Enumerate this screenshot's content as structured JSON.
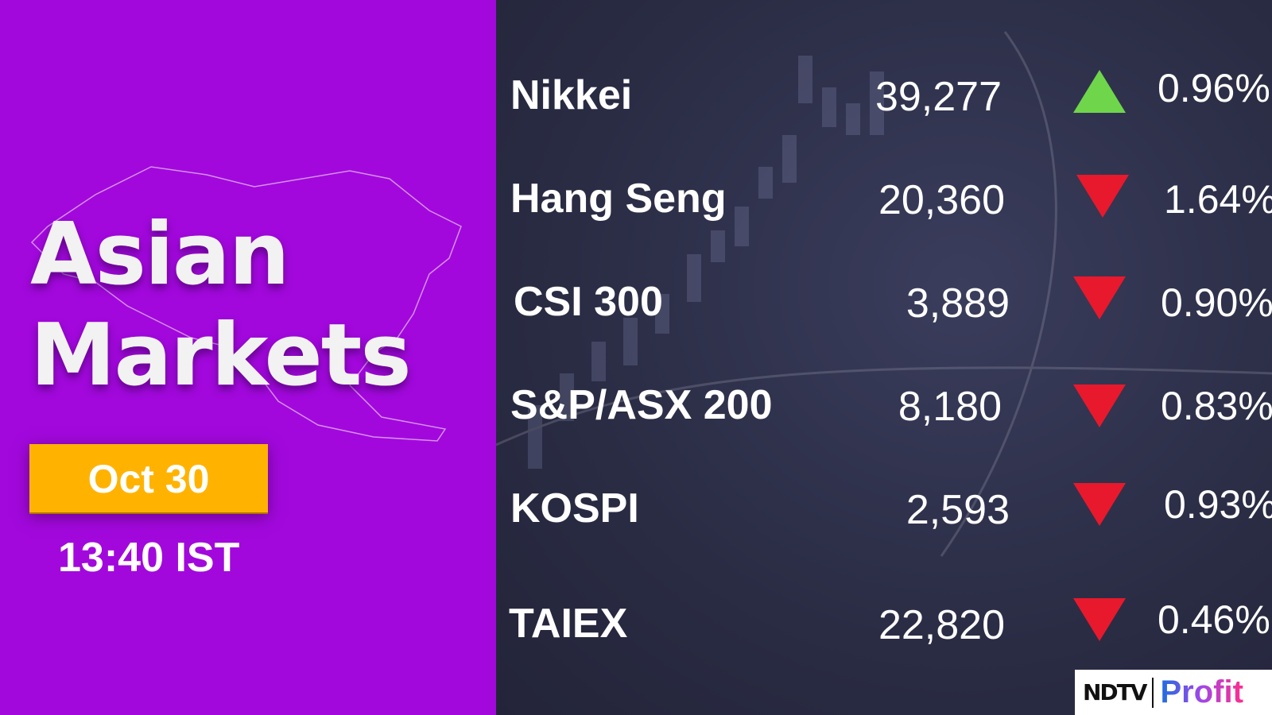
{
  "headline": {
    "line1": "Asian",
    "line2": "Markets"
  },
  "date": "Oct 30",
  "time": "13:40 IST",
  "colors": {
    "left_panel": "#a208dc",
    "date_badge": "#ffb300",
    "up": "#6fd64b",
    "down": "#e8192c"
  },
  "indices": [
    {
      "name": "Nikkei",
      "value": "39,277",
      "direction": "up",
      "change": "0.96%"
    },
    {
      "name": "Hang Seng",
      "value": "20,360",
      "direction": "down",
      "change": "1.64%"
    },
    {
      "name": "CSI 300",
      "value": "3,889",
      "direction": "down",
      "change": "0.90%"
    },
    {
      "name": "S&P/ASX 200",
      "value": "8,180",
      "direction": "down",
      "change": "0.83%"
    },
    {
      "name": "KOSPI",
      "value": "2,593",
      "direction": "down",
      "change": "0.93%"
    },
    {
      "name": "TAIEX",
      "value": "22,820",
      "direction": "down",
      "change": "0.46%"
    }
  ],
  "logo": {
    "brand": "NDTV",
    "product": "Profit"
  }
}
